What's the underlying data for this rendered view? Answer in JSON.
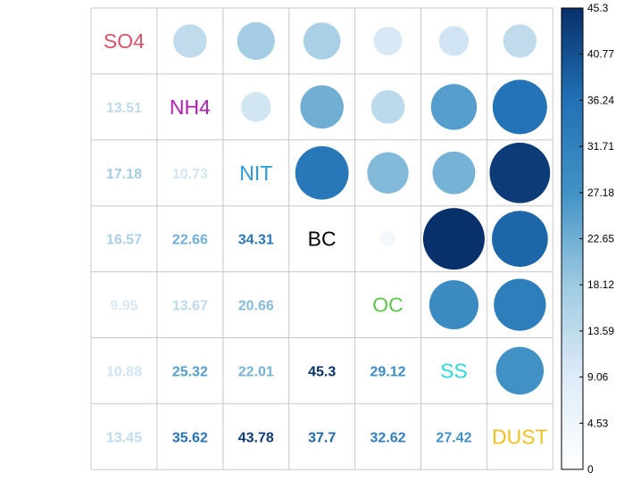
{
  "chart_data": {
    "type": "heatmap",
    "variables": [
      "SO4",
      "NH4",
      "NIT",
      "BC",
      "OC",
      "SS",
      "DUST"
    ],
    "variable_colors": [
      "#d9546a",
      "#b020b0",
      "#2a9ad8",
      "#000000",
      "#5cc84a",
      "#2ad8d8",
      "#f0c020"
    ],
    "matrix": [
      [
        null,
        13.51,
        17.18,
        16.57,
        9.95,
        10.88,
        13.45
      ],
      [
        13.51,
        null,
        10.73,
        22.66,
        13.67,
        25.32,
        35.62
      ],
      [
        17.18,
        10.73,
        null,
        34.31,
        20.66,
        22.01,
        43.78
      ],
      [
        16.57,
        22.66,
        34.31,
        null,
        3.0,
        45.3,
        37.7
      ],
      [
        9.95,
        13.67,
        20.66,
        3.0,
        null,
        29.12,
        32.62
      ],
      [
        10.88,
        25.32,
        22.01,
        45.3,
        29.12,
        null,
        27.42
      ],
      [
        13.45,
        35.62,
        43.78,
        37.7,
        32.62,
        27.42,
        null
      ]
    ],
    "lower_labels": [
      [
        "13.51"
      ],
      [
        "17.18",
        "10.73"
      ],
      [
        "16.57",
        "22.66",
        "34.31"
      ],
      [
        "9.95",
        "13.67",
        "20.66",
        ""
      ],
      [
        "10.88",
        "25.32",
        "22.01",
        "45.3",
        "29.12"
      ],
      [
        "13.45",
        "35.62",
        "43.78",
        "37.7",
        "32.62",
        "27.42"
      ]
    ],
    "upper": "circle",
    "lower": "number",
    "value_range": [
      0,
      45.3
    ],
    "colorbar": {
      "ticks": [
        "45.3",
        "40.77",
        "36.24",
        "31.71",
        "27.18",
        "22.65",
        "18.12",
        "13.59",
        "9.06",
        "4.53",
        "0"
      ],
      "colors": [
        "#ffffff",
        "#deebf7",
        "#9ecae1",
        "#4292c6",
        "#2171b5",
        "#08306b"
      ]
    }
  }
}
